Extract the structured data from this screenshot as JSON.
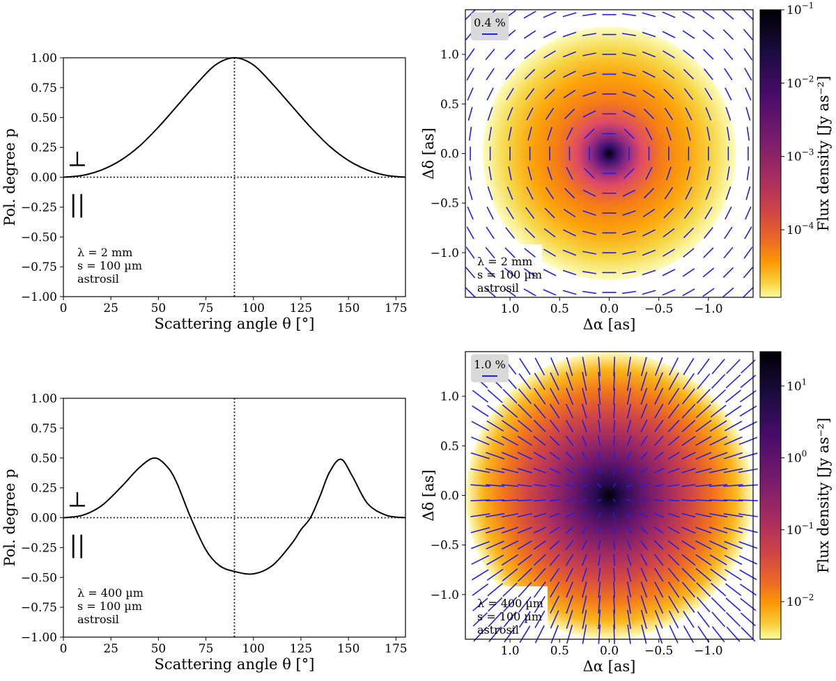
{
  "colors": {
    "curve": "#000000",
    "vector": "#1f1fe6",
    "inset_box": "#d9d9d9"
  },
  "chart_data": [
    {
      "type": "line",
      "panel": "top-left",
      "xlabel": "Scattering angle θ [°]",
      "ylabel": "Pol. degree p",
      "xlim": [
        0,
        180
      ],
      "ylim": [
        -1.0,
        1.0
      ],
      "xticks": [
        "0",
        "25",
        "50",
        "75",
        "100",
        "125",
        "150",
        "175"
      ],
      "yticks": [
        "1.00",
        "0.75",
        "0.50",
        "0.25",
        "0.00",
        "−0.25",
        "−0.50",
        "−0.75",
        "−1.00"
      ],
      "markers": {
        "perp": "⊥",
        "para": "||"
      },
      "reference_lines": {
        "vertical_x": 90,
        "horizontal_y": 0
      },
      "annotation": [
        "λ = 2 mm",
        "s = 100 µm",
        "astrosil"
      ],
      "series": [
        {
          "x": [
            0,
            10,
            20,
            30,
            40,
            50,
            60,
            70,
            80,
            90,
            100,
            110,
            120,
            130,
            140,
            150,
            160,
            170,
            180
          ],
          "y": [
            0,
            0.015,
            0.06,
            0.14,
            0.26,
            0.42,
            0.6,
            0.78,
            0.94,
            1.0,
            0.94,
            0.78,
            0.6,
            0.42,
            0.26,
            0.14,
            0.06,
            0.015,
            0
          ]
        }
      ]
    },
    {
      "type": "line",
      "panel": "bottom-left",
      "xlabel": "Scattering angle θ [°]",
      "ylabel": "Pol. degree p",
      "xlim": [
        0,
        180
      ],
      "ylim": [
        -1.0,
        1.0
      ],
      "xticks": [
        "0",
        "25",
        "50",
        "75",
        "100",
        "125",
        "150",
        "175"
      ],
      "yticks": [
        "1.00",
        "0.75",
        "0.50",
        "0.25",
        "0.00",
        "−0.25",
        "−0.50",
        "−0.75",
        "−1.00"
      ],
      "markers": {
        "perp": "⊥",
        "para": "||"
      },
      "reference_lines": {
        "vertical_x": 90,
        "horizontal_y": 0
      },
      "annotation": [
        "λ = 400 µm",
        "s = 100 µm",
        "astrosil"
      ],
      "series": [
        {
          "x": [
            0,
            10,
            20,
            30,
            40,
            48,
            55,
            60,
            67,
            75,
            82,
            90,
            100,
            110,
            120,
            125,
            130,
            135,
            140,
            146,
            152,
            160,
            170,
            180
          ],
          "y": [
            0,
            0.02,
            0.1,
            0.25,
            0.42,
            0.5,
            0.42,
            0.28,
            0.0,
            -0.27,
            -0.4,
            -0.45,
            -0.47,
            -0.4,
            -0.22,
            -0.1,
            0.0,
            0.18,
            0.38,
            0.49,
            0.35,
            0.12,
            0.02,
            0
          ]
        }
      ]
    },
    {
      "type": "heatmap",
      "panel": "top-right",
      "xlabel": "Δα [as]",
      "ylabel": "Δδ [as]",
      "xlim": [
        1.45,
        -1.45
      ],
      "ylim": [
        -1.45,
        1.45
      ],
      "xticks": [
        "1.0",
        "0.5",
        "0.0",
        "−0.5",
        "−1.0"
      ],
      "yticks": [
        "1.0",
        "0.5",
        "0.0",
        "−0.5",
        "−1.0"
      ],
      "colorbar": {
        "label": "Flux density [Jy as⁻²]",
        "scale": "log",
        "tick_labels": [
          {
            "b": "10",
            "e": "−1"
          },
          {
            "b": "10",
            "e": "−2"
          },
          {
            "b": "10",
            "e": "−3"
          },
          {
            "b": "10",
            "e": "−4"
          }
        ],
        "tick_values": [
          0.1,
          0.01,
          0.001,
          0.0001
        ],
        "range": [
          1.2e-05,
          0.1
        ]
      },
      "vector_scale_label": "0.4 %",
      "vector_pattern": "azimuthal",
      "annotation": [
        "λ = 2 mm",
        "s = 100 µm",
        "astrosil"
      ]
    },
    {
      "type": "heatmap",
      "panel": "bottom-right",
      "xlabel": "Δα [as]",
      "ylabel": "Δδ [as]",
      "xlim": [
        1.45,
        -1.45
      ],
      "ylim": [
        -1.45,
        1.45
      ],
      "xticks": [
        "1.0",
        "0.5",
        "0.0",
        "−0.5",
        "−1.0"
      ],
      "yticks": [
        "1.0",
        "0.5",
        "0.0",
        "−0.5",
        "−1.0"
      ],
      "colorbar": {
        "label": "Flux density [Jy as⁻²]",
        "scale": "log",
        "tick_labels": [
          {
            "b": "10",
            "e": "1"
          },
          {
            "b": "10",
            "e": "0"
          },
          {
            "b": "10",
            "e": "−1"
          },
          {
            "b": "10",
            "e": "−2"
          }
        ],
        "tick_values": [
          10,
          1,
          0.1,
          0.01
        ],
        "range": [
          0.003,
          30
        ]
      },
      "vector_scale_label": "1.0 %",
      "vector_pattern": "radial",
      "annotation": [
        "λ = 400 µm",
        "s = 100 µm",
        "astrosil"
      ]
    }
  ]
}
